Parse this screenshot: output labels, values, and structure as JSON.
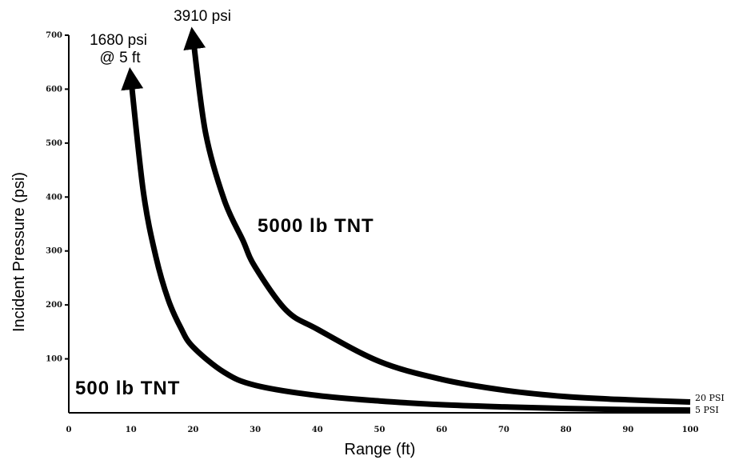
{
  "chart_data": {
    "type": "line",
    "title": "",
    "xlabel": "Range (ft)",
    "ylabel": "Incident Pressure (psi)",
    "xlim": [
      0,
      100
    ],
    "ylim": [
      0,
      700
    ],
    "x_ticks": [
      "0",
      "10",
      "20",
      "30",
      "40",
      "50",
      "60",
      "70",
      "80",
      "90",
      "100"
    ],
    "y_ticks": [
      "100",
      "200",
      "300",
      "400",
      "500",
      "600",
      "700"
    ],
    "grid": false,
    "series": [
      {
        "name": "500 lb TNT",
        "color": "#000000",
        "x": [
          10,
          12,
          14,
          16,
          18,
          20,
          25,
          30,
          40,
          50,
          60,
          70,
          80,
          90,
          100
        ],
        "y": [
          620,
          410,
          290,
          210,
          158,
          122,
          75,
          51,
          32,
          22,
          15,
          11,
          8,
          6,
          5
        ]
      },
      {
        "name": "5000 lb TNT",
        "color": "#000000",
        "x": [
          20,
          22,
          25,
          28,
          30,
          35,
          40,
          50,
          60,
          70,
          80,
          90,
          100
        ],
        "y": [
          695,
          520,
          395,
          320,
          270,
          190,
          155,
          95,
          62,
          42,
          30,
          24,
          20
        ]
      }
    ],
    "annotations": {
      "peak_500": [
        "1680 psi",
        "@ 5 ft"
      ],
      "peak_5000": "3910 psi",
      "end_5000": "20 PSI",
      "end_500": "5 PSI"
    }
  }
}
